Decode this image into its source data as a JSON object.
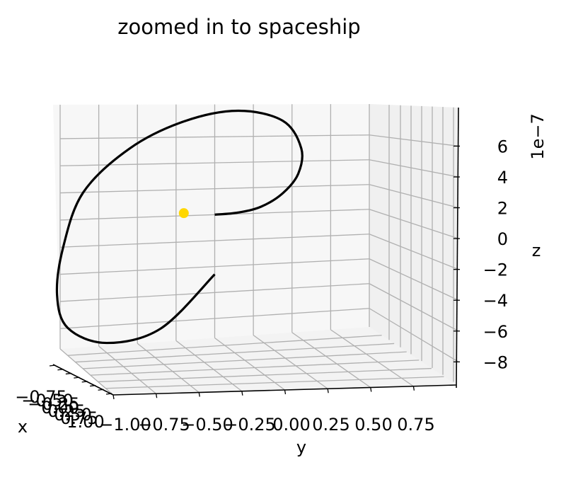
{
  "chart_data": {
    "type": "line",
    "projection": "3d",
    "title": "zoomed in to spaceship",
    "xlabel": "x",
    "ylabel": "y",
    "zlabel": "z",
    "z_offset_label": "1e−7",
    "x_tick_labels": [
      "−0.75",
      "−0.50",
      "−0.25",
      "0.00",
      "0.25",
      "0.50",
      "0.75",
      "1.00"
    ],
    "y_tick_labels": [
      "−1.00",
      "−0.75",
      "−0.50",
      "−0.25",
      "0.00",
      "0.25",
      "0.50",
      "0.75"
    ],
    "z_tick_labels": [
      "−8",
      "−6",
      "−4",
      "−2",
      "0",
      "2",
      "4",
      "6"
    ],
    "ylim": [
      -1.0,
      1.0
    ],
    "zlim": [
      -9.5,
      8.5
    ],
    "grid": true,
    "series": [
      {
        "color": "#000000",
        "y": [
          0.0,
          0.15,
          0.3,
          0.44,
          0.54,
          0.56,
          0.44,
          0.15,
          -0.2,
          -0.55,
          -0.85,
          -0.98,
          -1.02,
          -0.95,
          -0.7,
          -0.35,
          0.0
        ],
        "z": [
          0.0,
          0.1,
          0.5,
          1.5,
          3.0,
          5.0,
          7.2,
          8.0,
          7.2,
          5.2,
          2.0,
          -2.0,
          -5.5,
          -8.0,
          -9.3,
          -8.5,
          -4.6
        ]
      }
    ],
    "marker": {
      "color": "#ffd700",
      "y": -0.2,
      "z": 0.2
    }
  }
}
